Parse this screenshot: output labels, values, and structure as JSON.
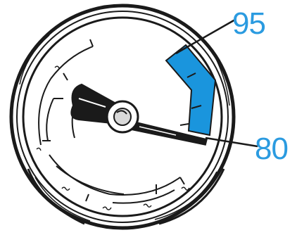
{
  "gauge": {
    "highlight_range": {
      "from": 80,
      "to": 95
    },
    "callouts": {
      "upper": {
        "label": "95"
      },
      "lower": {
        "label": "80"
      }
    }
  },
  "colors": {
    "highlight": "#1a95dd",
    "callout_text": "#2b9be0",
    "ink": "#1a1a1a"
  }
}
